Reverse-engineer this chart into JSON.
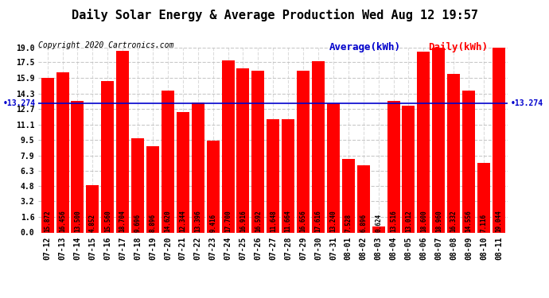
{
  "title": "Daily Solar Energy & Average Production Wed Aug 12 19:57",
  "copyright": "Copyright 2020 Cartronics.com",
  "legend_average": "Average(kWh)",
  "legend_daily": "Daily(kWh)",
  "average_value": 13.274,
  "categories": [
    "07-12",
    "07-13",
    "07-14",
    "07-15",
    "07-16",
    "07-17",
    "07-18",
    "07-19",
    "07-20",
    "07-21",
    "07-22",
    "07-23",
    "07-24",
    "07-25",
    "07-26",
    "07-27",
    "07-28",
    "07-29",
    "07-30",
    "07-31",
    "08-01",
    "08-02",
    "08-03",
    "08-04",
    "08-05",
    "08-06",
    "08-07",
    "08-08",
    "08-09",
    "08-10",
    "08-11"
  ],
  "values": [
    15.872,
    16.456,
    13.5,
    4.852,
    15.56,
    18.704,
    9.696,
    8.896,
    14.62,
    12.344,
    13.396,
    9.416,
    17.7,
    16.916,
    16.592,
    11.648,
    11.664,
    16.656,
    17.616,
    13.24,
    7.528,
    6.896,
    0.624,
    13.516,
    13.012,
    18.6,
    18.96,
    16.332,
    14.556,
    7.116,
    19.044
  ],
  "bar_color": "#ff0000",
  "average_line_color": "#0000cd",
  "avg_label_color": "#0000cd",
  "daily_label_color": "#ff0000",
  "title_color": "#000000",
  "copyright_color": "#000000",
  "background_color": "#ffffff",
  "ylim": [
    0.0,
    19.0
  ],
  "yticks": [
    0.0,
    1.6,
    3.2,
    4.8,
    6.3,
    7.9,
    9.5,
    11.1,
    12.7,
    14.3,
    15.9,
    17.5,
    19.0
  ],
  "grid_color": "#bbbbbb",
  "avg_annotation": "13.274",
  "title_fontsize": 11,
  "copyright_fontsize": 7,
  "tick_fontsize": 7,
  "bar_label_fontsize": 5.5,
  "legend_fontsize": 9
}
